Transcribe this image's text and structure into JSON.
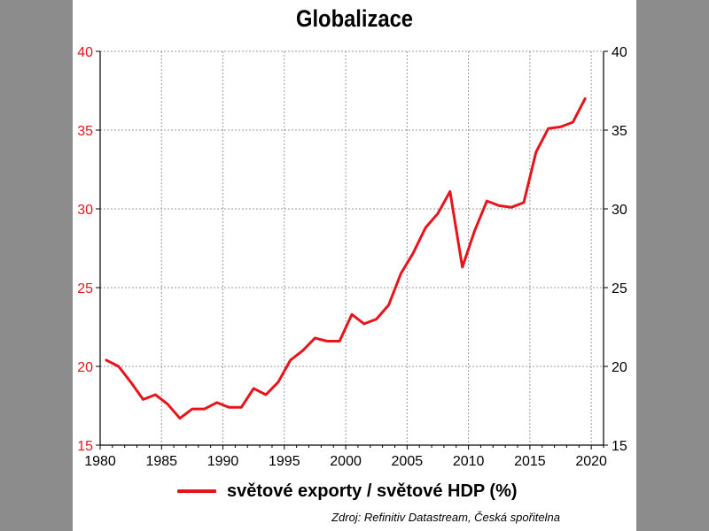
{
  "chart_data": {
    "type": "line",
    "title": "Globalizace",
    "xlabel": "",
    "ylabel": "",
    "xlim": [
      1980,
      2021
    ],
    "ylim": [
      15,
      40
    ],
    "x_ticks": [
      1980,
      1985,
      1990,
      1995,
      2000,
      2005,
      2010,
      2015,
      2020
    ],
    "y_ticks": [
      15,
      20,
      25,
      30,
      35,
      40
    ],
    "grid": true,
    "legend_position": "bottom-left",
    "source": "Zdroj: Refinitiv Datastream, Česká spořitelna",
    "series": [
      {
        "name": "světové exporty / světové HDP (%)",
        "color": "#e8141b",
        "x": [
          1980.5,
          1981.5,
          1982.5,
          1983.5,
          1984.5,
          1985.5,
          1986.5,
          1987.5,
          1988.5,
          1989.5,
          1990.5,
          1991.5,
          1992.5,
          1993.5,
          1994.5,
          1995.5,
          1996.5,
          1997.5,
          1998.5,
          1999.5,
          2000.5,
          2001.5,
          2002.5,
          2003.5,
          2004.5,
          2005.5,
          2006.5,
          2007.5,
          2008.5,
          2009.5,
          2010.5,
          2011.5,
          2012.5,
          2013.5,
          2014.5,
          2015.5,
          2016.5,
          2017.5,
          2018.5,
          2019.5
        ],
        "values": [
          20.4,
          20.0,
          19.0,
          17.9,
          18.2,
          17.6,
          16.7,
          17.3,
          17.3,
          17.7,
          17.4,
          17.4,
          18.6,
          18.2,
          19.0,
          20.4,
          21.0,
          21.8,
          21.6,
          21.6,
          23.3,
          22.7,
          23.0,
          23.9,
          25.9,
          27.2,
          28.8,
          29.7,
          31.1,
          26.3,
          28.6,
          30.5,
          30.2,
          30.1,
          30.4,
          33.6,
          35.1,
          35.2,
          35.5,
          37.0
        ]
      }
    ]
  }
}
